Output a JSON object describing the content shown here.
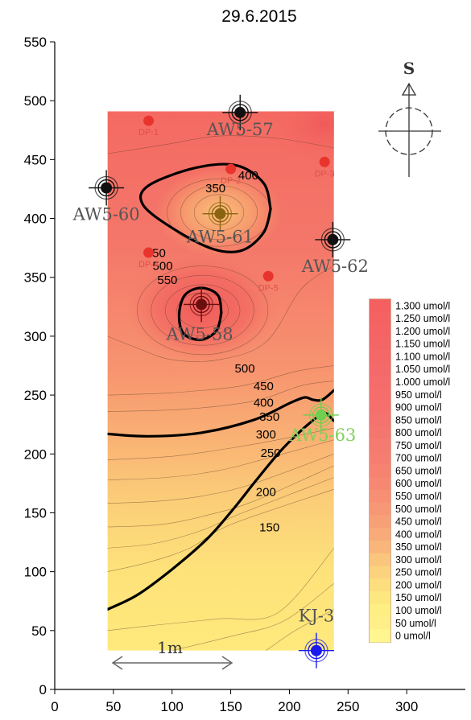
{
  "chart_data": {
    "type": "contour",
    "title": "29.6.2015",
    "xlim": [
      0,
      350
    ],
    "ylim": [
      0,
      550
    ],
    "x_ticks": [
      0,
      50,
      100,
      150,
      200,
      250,
      300
    ],
    "y_ticks": [
      0,
      50,
      100,
      150,
      200,
      250,
      300,
      350,
      400,
      450,
      500,
      550
    ],
    "field_extent": {
      "x": [
        45,
        238
      ],
      "y": [
        33,
        491
      ]
    },
    "wells": [
      {
        "name": "AW5-57",
        "x": 158,
        "y": 490,
        "color": "#111111",
        "label_color": "#555555"
      },
      {
        "name": "AW5-60",
        "x": 44,
        "y": 426,
        "color": "#111111",
        "label_color": "#555555"
      },
      {
        "name": "AW5-61",
        "x": 141,
        "y": 404,
        "color": "#8a6410",
        "label_color": "#555555"
      },
      {
        "name": "AW5-62",
        "x": 237,
        "y": 382,
        "color": "#111111",
        "label_color": "#555555"
      },
      {
        "name": "AW5-58",
        "x": 125,
        "y": 327,
        "color": "#6a0f0f",
        "label_color": "#555555"
      },
      {
        "name": "AW5-63",
        "x": 227,
        "y": 233,
        "color": "#6fcf4f",
        "label_color": "#7fd05a"
      },
      {
        "name": "KJ-3",
        "x": 223,
        "y": 33,
        "color": "#1a1aee",
        "label_color": "#555555"
      }
    ],
    "dp_points": [
      {
        "name": "DP-1",
        "x": 80,
        "y": 483
      },
      {
        "name": "DP-2",
        "x": 150,
        "y": 442
      },
      {
        "name": "DP-3",
        "x": 230,
        "y": 448
      },
      {
        "name": "DP-4",
        "x": 80,
        "y": 371
      },
      {
        "name": "DP-5",
        "x": 182,
        "y": 351
      }
    ],
    "major_contours": [
      {
        "level": 400,
        "points": [
          [
            184,
            408
          ],
          [
            178,
            430
          ],
          [
            155,
            445
          ],
          [
            120,
            443
          ],
          [
            80,
            428
          ],
          [
            75,
            412
          ],
          [
            100,
            392
          ],
          [
            135,
            374
          ],
          [
            160,
            373
          ],
          [
            178,
            388
          ],
          [
            184,
            408
          ]
        ]
      },
      {
        "level": 550,
        "points": [
          [
            142,
            320
          ],
          [
            138,
            305
          ],
          [
            125,
            297
          ],
          [
            110,
            302
          ],
          [
            106,
            318
          ],
          [
            111,
            335
          ],
          [
            125,
            341
          ],
          [
            139,
            335
          ],
          [
            142,
            320
          ]
        ]
      },
      {
        "level": 400,
        "points": [
          [
            45,
            217
          ],
          [
            80,
            215
          ],
          [
            125,
            218
          ],
          [
            170,
            229
          ],
          [
            200,
            243
          ],
          [
            213,
            248
          ],
          [
            220,
            246
          ],
          [
            228,
            246
          ],
          [
            238,
            254
          ]
        ]
      },
      {
        "level": 200,
        "points": [
          [
            45,
            68
          ],
          [
            70,
            80
          ],
          [
            100,
            102
          ],
          [
            130,
            128
          ],
          [
            152,
            153
          ],
          [
            172,
            178
          ],
          [
            192,
            202
          ],
          [
            208,
            218
          ],
          [
            222,
            230
          ],
          [
            230,
            235
          ],
          [
            238,
            228
          ]
        ]
      }
    ],
    "contour_labels": [
      {
        "text": "350",
        "x": 137,
        "y": 425
      },
      {
        "text": "400",
        "x": 165,
        "y": 436
      },
      {
        "text": "450",
        "x": 86,
        "y": 370
      },
      {
        "text": "500",
        "x": 92,
        "y": 359
      },
      {
        "text": "550",
        "x": 96,
        "y": 347
      },
      {
        "text": "500",
        "x": 162,
        "y": 272
      },
      {
        "text": "450",
        "x": 178,
        "y": 257
      },
      {
        "text": "400",
        "x": 178,
        "y": 243
      },
      {
        "text": "350",
        "x": 183,
        "y": 231
      },
      {
        "text": "300",
        "x": 180,
        "y": 216
      },
      {
        "text": "250",
        "x": 184,
        "y": 200
      },
      {
        "text": "200",
        "x": 180,
        "y": 167
      },
      {
        "text": "150",
        "x": 183,
        "y": 137
      }
    ],
    "legend": {
      "placement": "right",
      "entries": [
        "1.300 umol/l",
        "1.250 umol/l",
        "1.200 umol/l",
        "1.150 umol/l",
        "1.100 umol/l",
        "1.050 umol/l",
        "1.000 umol/l",
        "950 umol/l",
        "900 umol/l",
        "850 umol/l",
        "800 umol/l",
        "750 umol/l",
        "700 umol/l",
        "650 umol/l",
        "600 umol/l",
        "550 umol/l",
        "500 umol/l",
        "450 umol/l",
        "400 umol/l",
        "350 umol/l",
        "300 umol/l",
        "250 umol/l",
        "200 umol/l",
        "150 umol/l",
        "100 umol/l",
        "50 umol/l",
        "0 umol/l"
      ],
      "colors": [
        "#f46060",
        "#f46262",
        "#f46464",
        "#f46666",
        "#f46868",
        "#f46a6a",
        "#f46c6c",
        "#f56e6c",
        "#f5706d",
        "#f5736e",
        "#f5766e",
        "#f57a6f",
        "#f57e70",
        "#f68371",
        "#f68873",
        "#f68f74",
        "#f69776",
        "#f7a077",
        "#f8aa78",
        "#f9b67b",
        "#fac57c",
        "#fbd27d",
        "#fcde7e",
        "#fde87f",
        "#fdef82",
        "#feef88",
        "#fff690"
      ]
    },
    "compass": {
      "letter": "S"
    },
    "scale_bar": {
      "label": "1m"
    }
  }
}
